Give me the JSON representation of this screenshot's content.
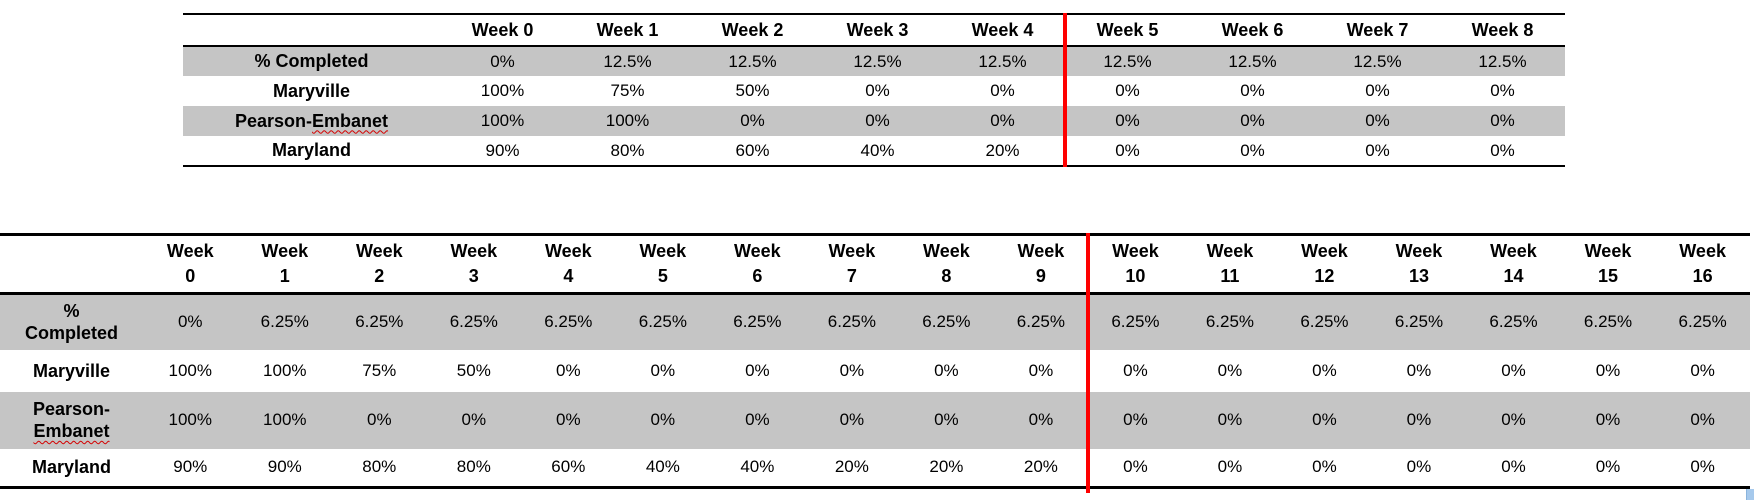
{
  "colors": {
    "row_shade": "#C5C5C5",
    "divider_red": "#FE0000",
    "border_black": "#000000",
    "squiggle_red": "#D40000",
    "scrollbar_accent": "#A6C9EC"
  },
  "tables": [
    {
      "name": "8-week schedule table",
      "red_divider_after_column": "Week 4",
      "headers": [
        [
          "Week 0"
        ],
        [
          "Week 1"
        ],
        [
          "Week 2"
        ],
        [
          "Week 3"
        ],
        [
          "Week 4"
        ],
        [
          "Week 5"
        ],
        [
          "Week 6"
        ],
        [
          "Week 7"
        ],
        [
          "Week 8"
        ]
      ],
      "rows": [
        {
          "shaded": true,
          "label_lines": [
            [
              {
                "text": "% Completed"
              }
            ]
          ],
          "values": [
            "0%",
            "12.5%",
            "12.5%",
            "12.5%",
            "12.5%",
            "12.5%",
            "12.5%",
            "12.5%",
            "12.5%"
          ]
        },
        {
          "shaded": false,
          "label_lines": [
            [
              {
                "text": "Maryville"
              }
            ]
          ],
          "values": [
            "100%",
            "75%",
            "50%",
            "0%",
            "0%",
            "0%",
            "0%",
            "0%",
            "0%"
          ]
        },
        {
          "shaded": true,
          "label_lines": [
            [
              {
                "text": "Pearson-"
              },
              {
                "text": "Embanet",
                "wavy": true
              }
            ]
          ],
          "values": [
            "100%",
            "100%",
            "0%",
            "0%",
            "0%",
            "0%",
            "0%",
            "0%",
            "0%"
          ]
        },
        {
          "shaded": false,
          "label_lines": [
            [
              {
                "text": "Maryland"
              }
            ]
          ],
          "values": [
            "90%",
            "80%",
            "60%",
            "40%",
            "20%",
            "0%",
            "0%",
            "0%",
            "0%"
          ]
        }
      ]
    },
    {
      "name": "16-week schedule table",
      "red_divider_after_column": "Week 9",
      "headers": [
        [
          "Week",
          "0"
        ],
        [
          "Week",
          "1"
        ],
        [
          "Week",
          "2"
        ],
        [
          "Week",
          "3"
        ],
        [
          "Week",
          "4"
        ],
        [
          "Week",
          "5"
        ],
        [
          "Week",
          "6"
        ],
        [
          "Week",
          "7"
        ],
        [
          "Week",
          "8"
        ],
        [
          "Week",
          "9"
        ],
        [
          "Week",
          "10"
        ],
        [
          "Week",
          "11"
        ],
        [
          "Week",
          "12"
        ],
        [
          "Week",
          "13"
        ],
        [
          "Week",
          "14"
        ],
        [
          "Week",
          "15"
        ],
        [
          "Week",
          "16"
        ]
      ],
      "rows": [
        {
          "shaded": true,
          "label_lines": [
            [
              {
                "text": "%"
              }
            ],
            [
              {
                "text": "Completed"
              }
            ]
          ],
          "values": [
            "0%",
            "6.25%",
            "6.25%",
            "6.25%",
            "6.25%",
            "6.25%",
            "6.25%",
            "6.25%",
            "6.25%",
            "6.25%",
            "6.25%",
            "6.25%",
            "6.25%",
            "6.25%",
            "6.25%",
            "6.25%",
            "6.25%"
          ]
        },
        {
          "shaded": false,
          "label_lines": [
            [
              {
                "text": "Maryville"
              }
            ]
          ],
          "values": [
            "100%",
            "100%",
            "75%",
            "50%",
            "0%",
            "0%",
            "0%",
            "0%",
            "0%",
            "0%",
            "0%",
            "0%",
            "0%",
            "0%",
            "0%",
            "0%",
            "0%"
          ]
        },
        {
          "shaded": true,
          "label_lines": [
            [
              {
                "text": "Pearson-"
              }
            ],
            [
              {
                "text": "Embanet",
                "wavy": true
              }
            ]
          ],
          "values": [
            "100%",
            "100%",
            "0%",
            "0%",
            "0%",
            "0%",
            "0%",
            "0%",
            "0%",
            "0%",
            "0%",
            "0%",
            "0%",
            "0%",
            "0%",
            "0%",
            "0%"
          ]
        },
        {
          "shaded": false,
          "label_lines": [
            [
              {
                "text": "Maryland"
              }
            ]
          ],
          "values": [
            "90%",
            "90%",
            "80%",
            "80%",
            "60%",
            "40%",
            "40%",
            "20%",
            "20%",
            "20%",
            "0%",
            "0%",
            "0%",
            "0%",
            "0%",
            "0%",
            "0%"
          ]
        }
      ]
    }
  ]
}
